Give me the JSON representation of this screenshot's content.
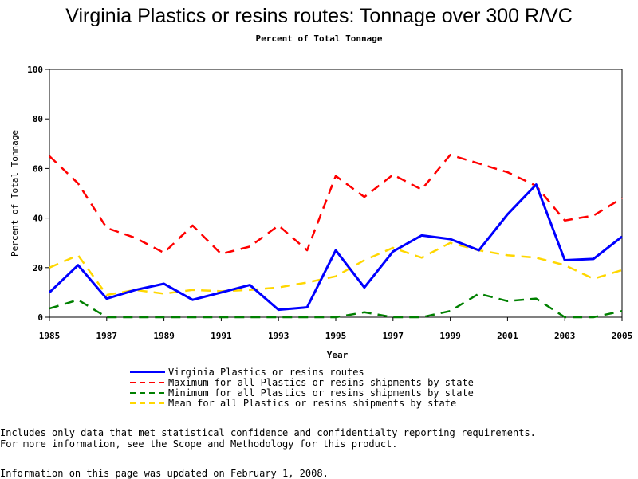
{
  "chart_data": {
    "type": "line",
    "title": "Virginia Plastics or resins routes: Tonnage over 300 R/VC",
    "subtitle": "Percent of Total Tonnage",
    "xlabel": "Year",
    "ylabel": "Percent of Total Tonnage",
    "xlim": [
      1985,
      2005
    ],
    "ylim": [
      0,
      100
    ],
    "x_ticks": [
      "1985",
      "1987",
      "1989",
      "1991",
      "1993",
      "1995",
      "1997",
      "1999",
      "2001",
      "2003",
      "2005"
    ],
    "y_ticks": [
      "0",
      "20",
      "40",
      "60",
      "80",
      "100"
    ],
    "x": [
      1985,
      1986,
      1987,
      1988,
      1989,
      1990,
      1991,
      1992,
      1993,
      1994,
      1995,
      1996,
      1997,
      1998,
      1999,
      2000,
      2001,
      2002,
      2003,
      2004,
      2005
    ],
    "series": [
      {
        "name": "Virginia Plastics or resins routes",
        "color": "#0000ff",
        "style": "solid",
        "values": [
          10,
          21,
          7.5,
          11,
          13.5,
          7,
          10,
          13,
          3,
          4,
          27,
          12,
          26.5,
          33,
          31.5,
          27,
          41.5,
          53.5,
          23,
          23.5,
          32.5
        ]
      },
      {
        "name": "Maximum for all Plastics or resins shipments by state",
        "color": "#ff0000",
        "style": "dashed",
        "values": [
          65,
          54,
          36,
          32,
          26,
          37,
          25.5,
          28.5,
          37,
          27,
          57,
          48.5,
          57.5,
          51.5,
          65.5,
          62,
          58.5,
          53,
          39,
          41,
          48
        ]
      },
      {
        "name": "Minimum for all Plastics or resins shipments by state",
        "color": "#008000",
        "style": "dashed",
        "values": [
          3.5,
          7,
          0,
          0,
          0,
          0,
          0,
          0,
          0,
          0,
          0,
          2,
          0,
          0,
          2.5,
          9.5,
          6.5,
          7.5,
          0,
          0,
          2.5
        ]
      },
      {
        "name": "Mean for all Plastics or resins shipments by state",
        "color": "#ffd700",
        "style": "dashed",
        "values": [
          20,
          25,
          9,
          11,
          9.5,
          11,
          10.5,
          11,
          12,
          14,
          16.5,
          23,
          28,
          24,
          30,
          27,
          25,
          24,
          21,
          15.5,
          19
        ]
      }
    ]
  },
  "notes": [
    "Includes only data that met statistical confidence and confidentialty reporting requirements.",
    "For more information, see the Scope and Methodology for this product."
  ],
  "updated": "Information on this page was updated on February 1, 2008."
}
